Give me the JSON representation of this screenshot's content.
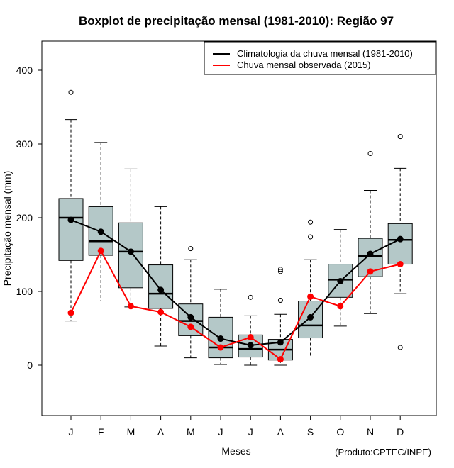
{
  "chart_data": {
    "type": "boxplot",
    "title": "Boxplot de precipitação mensal (1981-2010): Região 97",
    "xlabel": "Meses",
    "ylabel": "Precipitação mensal (mm)",
    "credit": "(Produto:CPTEC/INPE)",
    "ylim": [
      -68,
      435
    ],
    "yticks": [
      0,
      100,
      200,
      300,
      400
    ],
    "categories": [
      "J",
      "F",
      "M",
      "A",
      "M",
      "J",
      "J",
      "A",
      "S",
      "O",
      "N",
      "D"
    ],
    "boxes": [
      {
        "whisker_low": 60,
        "q1": 142,
        "median": 200,
        "q3": 226,
        "whisker_high": 333,
        "outliers": [
          370
        ]
      },
      {
        "whisker_low": 87,
        "q1": 149,
        "median": 168,
        "q3": 215,
        "whisker_high": 302,
        "outliers": []
      },
      {
        "whisker_low": 79,
        "q1": 105,
        "median": 154,
        "q3": 193,
        "whisker_high": 266,
        "outliers": []
      },
      {
        "whisker_low": 26,
        "q1": 77,
        "median": 97,
        "q3": 136,
        "whisker_high": 215,
        "outliers": []
      },
      {
        "whisker_low": 10,
        "q1": 40,
        "median": 60,
        "q3": 83,
        "whisker_high": 143,
        "outliers": [
          158
        ]
      },
      {
        "whisker_low": 1,
        "q1": 10,
        "median": 24,
        "q3": 65,
        "whisker_high": 103,
        "outliers": []
      },
      {
        "whisker_low": 0,
        "q1": 11,
        "median": 22,
        "q3": 41,
        "whisker_high": 67,
        "outliers": [
          92
        ]
      },
      {
        "whisker_low": 0,
        "q1": 7,
        "median": 21,
        "q3": 35,
        "whisker_high": 69,
        "outliers": [
          88,
          127,
          130
        ]
      },
      {
        "whisker_low": 11,
        "q1": 37,
        "median": 54,
        "q3": 87,
        "whisker_high": 143,
        "outliers": [
          174,
          194
        ]
      },
      {
        "whisker_low": 53,
        "q1": 92,
        "median": 116,
        "q3": 137,
        "whisker_high": 184,
        "outliers": []
      },
      {
        "whisker_low": 70,
        "q1": 120,
        "median": 148,
        "q3": 172,
        "whisker_high": 237,
        "outliers": [
          287
        ]
      },
      {
        "whisker_low": 97,
        "q1": 137,
        "median": 170,
        "q3": 192,
        "whisker_high": 267,
        "outliers": [
          24,
          310
        ]
      }
    ],
    "series": [
      {
        "name": "Climatologia da chuva mensal (1981-2010)",
        "color": "#000000",
        "values": [
          197,
          181,
          154,
          102,
          65,
          36,
          27,
          31,
          65,
          114,
          151,
          171
        ]
      },
      {
        "name": "Chuva mensal observada (2015)",
        "color": "#ff0000",
        "values": [
          71,
          155,
          80,
          72,
          52,
          24,
          38,
          8,
          93,
          80,
          127,
          137
        ]
      }
    ],
    "box_fill": "#b4c8c8",
    "legend_position": "top-right"
  }
}
